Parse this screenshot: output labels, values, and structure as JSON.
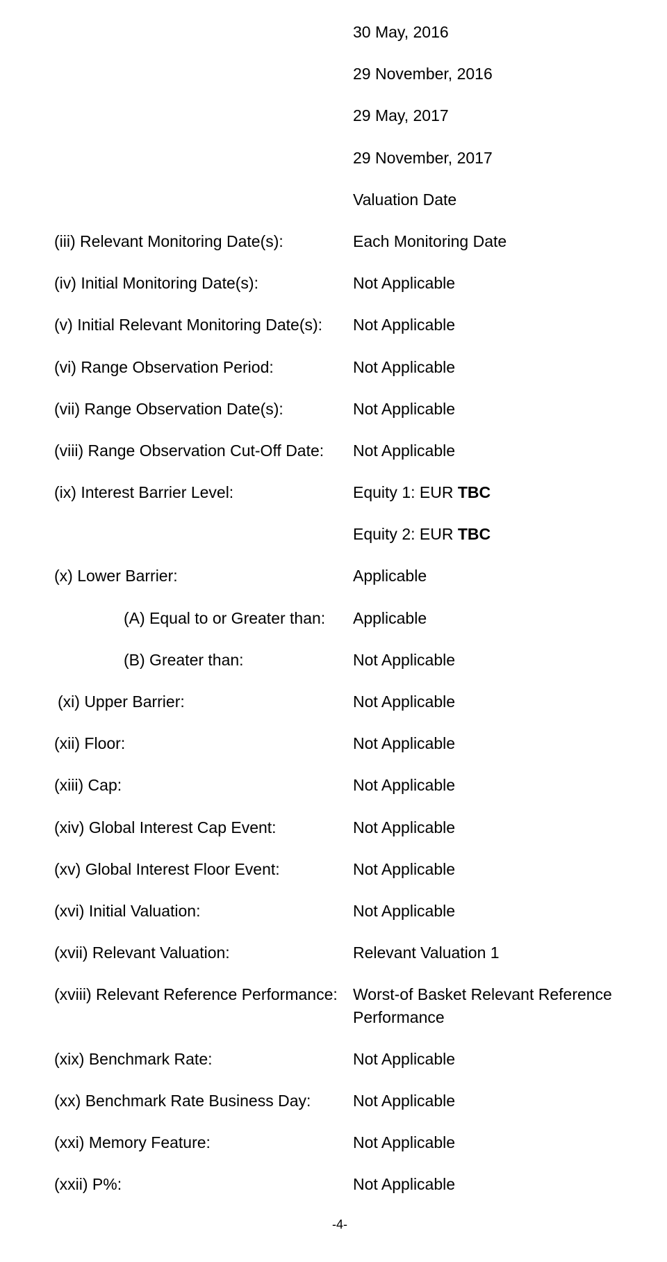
{
  "dates": {
    "d1": "30 May, 2016",
    "d2": "29 November, 2016",
    "d3": "29 May, 2017",
    "d4": "29 November, 2017",
    "d5": "Valuation Date"
  },
  "rows": {
    "iii": {
      "label": "(iii) Relevant Monitoring Date(s):",
      "value": "Each Monitoring Date"
    },
    "iv": {
      "label": "(iv) Initial Monitoring Date(s):",
      "value": "Not Applicable"
    },
    "v": {
      "label": "(v) Initial Relevant Monitoring Date(s):",
      "value": "Not Applicable"
    },
    "vi": {
      "label": "(vi) Range Observation Period:",
      "value": "Not Applicable"
    },
    "vii": {
      "label": "(vii) Range Observation Date(s):",
      "value": "Not Applicable"
    },
    "viii": {
      "label": "(viii) Range Observation Cut-Off Date:",
      "value": "Not Applicable"
    },
    "ix": {
      "label": "(ix) Interest Barrier Level:",
      "value_prefix": "Equity 1: EUR ",
      "value_bold": "TBC"
    },
    "ix2": {
      "value_prefix": "Equity 2: EUR ",
      "value_bold": "TBC"
    },
    "x": {
      "label": "(x)  Lower Barrier:",
      "value": "Applicable"
    },
    "xA": {
      "label": "(A) Equal to or Greater than:",
      "value": "Applicable"
    },
    "xB": {
      "label": "(B) Greater than:",
      "value": "Not Applicable"
    },
    "xi": {
      "label": "(xi) Upper Barrier:",
      "value": "Not Applicable"
    },
    "xii": {
      "label": "(xii) Floor:",
      "value": "Not Applicable"
    },
    "xiii": {
      "label": "(xiii) Cap:",
      "value": "Not Applicable"
    },
    "xiv": {
      "label": "(xiv) Global Interest Cap Event:",
      "value": "Not Applicable"
    },
    "xv": {
      "label": "(xv) Global Interest Floor Event:",
      "value": "Not Applicable"
    },
    "xvi": {
      "label": "(xvi) Initial Valuation:",
      "value": "Not Applicable"
    },
    "xvii": {
      "label": "(xvii) Relevant Valuation:",
      "value": "Relevant Valuation 1"
    },
    "xviii": {
      "label": "(xviii) Relevant Reference Performance:",
      "value": "Worst-of Basket Relevant Reference Performance"
    },
    "xix": {
      "label": "(xix) Benchmark Rate:",
      "value": "Not Applicable"
    },
    "xx": {
      "label": "(xx)  Benchmark Rate Business Day:",
      "value": "Not Applicable"
    },
    "xxi": {
      "label": "(xxi) Memory Feature:",
      "value": "Not Applicable"
    },
    "xxii": {
      "label": "(xxii) P%:",
      "value": "Not Applicable"
    }
  },
  "footer": "-4-"
}
